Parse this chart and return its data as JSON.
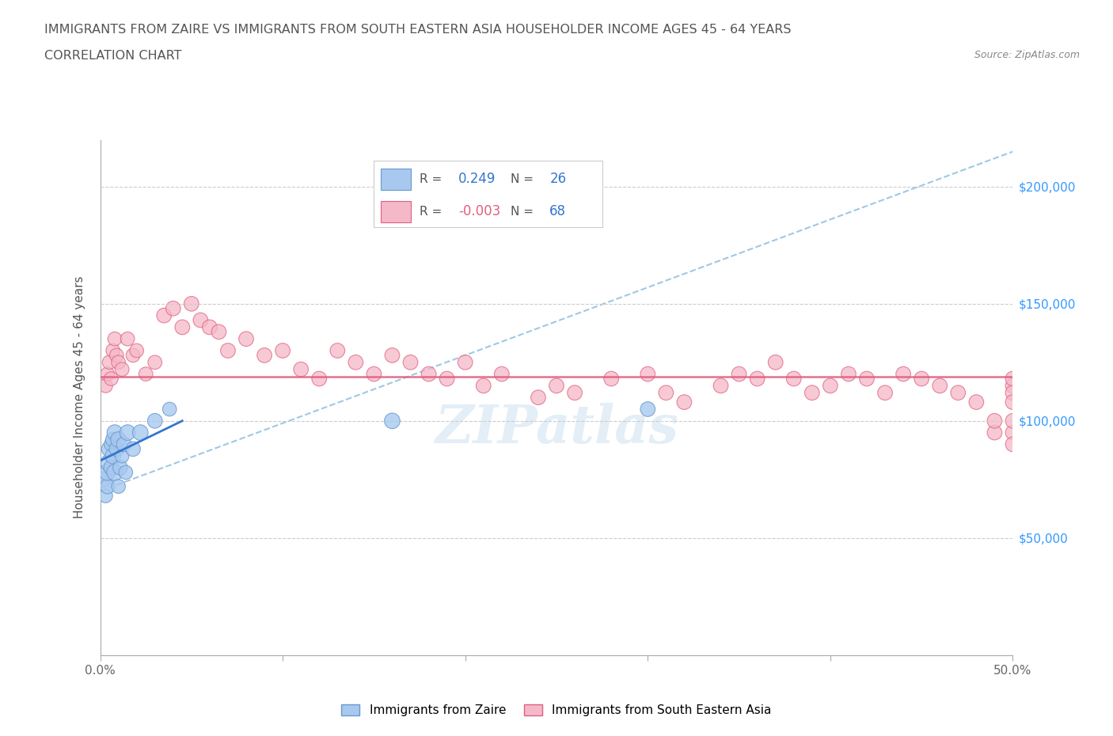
{
  "title_line1": "IMMIGRANTS FROM ZAIRE VS IMMIGRANTS FROM SOUTH EASTERN ASIA HOUSEHOLDER INCOME AGES 45 - 64 YEARS",
  "title_line2": "CORRELATION CHART",
  "source_text": "Source: ZipAtlas.com",
  "ylabel": "Householder Income Ages 45 - 64 years",
  "xlim": [
    0.0,
    0.5
  ],
  "ylim": [
    0,
    220000
  ],
  "xticks": [
    0.0,
    0.1,
    0.2,
    0.3,
    0.4,
    0.5
  ],
  "ytick_vals": [
    0,
    50000,
    100000,
    150000,
    200000
  ],
  "ytick_labels": [
    "",
    "$50,000",
    "$100,000",
    "$150,000",
    "$200,000"
  ],
  "grid_color": "#cccccc",
  "background_color": "#ffffff",
  "zaire_color": "#a8c8f0",
  "zaire_edge": "#6699cc",
  "sea_color": "#f5b8c8",
  "sea_edge": "#e06080",
  "zaire_R": 0.249,
  "zaire_N": 26,
  "sea_R": -0.003,
  "sea_N": 68,
  "zaire_x": [
    0.002,
    0.003,
    0.004,
    0.004,
    0.005,
    0.005,
    0.006,
    0.006,
    0.007,
    0.007,
    0.008,
    0.008,
    0.009,
    0.01,
    0.01,
    0.011,
    0.012,
    0.013,
    0.014,
    0.015,
    0.018,
    0.022,
    0.03,
    0.038,
    0.16,
    0.3
  ],
  "zaire_y": [
    75000,
    68000,
    72000,
    78000,
    82000,
    88000,
    80000,
    90000,
    85000,
    92000,
    78000,
    95000,
    88000,
    72000,
    92000,
    80000,
    85000,
    90000,
    78000,
    95000,
    88000,
    95000,
    100000,
    105000,
    100000,
    105000
  ],
  "zaire_size": [
    200,
    160,
    180,
    220,
    250,
    200,
    180,
    160,
    200,
    180,
    220,
    200,
    180,
    160,
    200,
    180,
    160,
    180,
    160,
    200,
    180,
    200,
    180,
    160,
    200,
    180
  ],
  "sea_x": [
    0.003,
    0.004,
    0.005,
    0.006,
    0.007,
    0.008,
    0.009,
    0.01,
    0.012,
    0.015,
    0.018,
    0.02,
    0.025,
    0.03,
    0.035,
    0.04,
    0.045,
    0.05,
    0.055,
    0.06,
    0.065,
    0.07,
    0.08,
    0.09,
    0.1,
    0.11,
    0.12,
    0.13,
    0.14,
    0.15,
    0.16,
    0.17,
    0.18,
    0.19,
    0.2,
    0.21,
    0.22,
    0.24,
    0.25,
    0.26,
    0.28,
    0.3,
    0.31,
    0.32,
    0.34,
    0.35,
    0.36,
    0.37,
    0.38,
    0.39,
    0.4,
    0.41,
    0.42,
    0.43,
    0.44,
    0.45,
    0.46,
    0.47,
    0.48,
    0.49,
    0.49,
    0.5,
    0.5,
    0.5,
    0.5,
    0.5,
    0.5,
    0.5
  ],
  "sea_y": [
    115000,
    120000,
    125000,
    118000,
    130000,
    135000,
    128000,
    125000,
    122000,
    135000,
    128000,
    130000,
    120000,
    125000,
    145000,
    148000,
    140000,
    150000,
    143000,
    140000,
    138000,
    130000,
    135000,
    128000,
    130000,
    122000,
    118000,
    130000,
    125000,
    120000,
    128000,
    125000,
    120000,
    118000,
    125000,
    115000,
    120000,
    110000,
    115000,
    112000,
    118000,
    120000,
    112000,
    108000,
    115000,
    120000,
    118000,
    125000,
    118000,
    112000,
    115000,
    120000,
    118000,
    112000,
    120000,
    118000,
    115000,
    112000,
    108000,
    95000,
    100000,
    115000,
    118000,
    112000,
    108000,
    95000,
    100000,
    90000
  ],
  "sea_size": [
    160,
    160,
    160,
    160,
    160,
    160,
    160,
    160,
    160,
    160,
    160,
    160,
    160,
    160,
    180,
    180,
    180,
    180,
    180,
    180,
    180,
    180,
    180,
    180,
    180,
    180,
    180,
    180,
    180,
    180,
    180,
    180,
    180,
    180,
    180,
    180,
    180,
    180,
    180,
    180,
    180,
    180,
    180,
    180,
    180,
    180,
    180,
    180,
    180,
    180,
    180,
    180,
    180,
    180,
    180,
    180,
    180,
    180,
    180,
    180,
    180,
    180,
    180,
    180,
    180,
    180,
    180,
    180
  ],
  "zaire_line_x": [
    0.0,
    0.045
  ],
  "zaire_line_y": [
    83000,
    100000
  ],
  "sea_line_y": 119000,
  "dash_line_x": [
    0.0,
    0.5
  ],
  "dash_line_y": [
    70000,
    215000
  ],
  "watermark_text": "ZIPatlas",
  "watermark_color": "#c8dff0",
  "watermark_alpha": 0.5,
  "watermark_fontsize": 48
}
